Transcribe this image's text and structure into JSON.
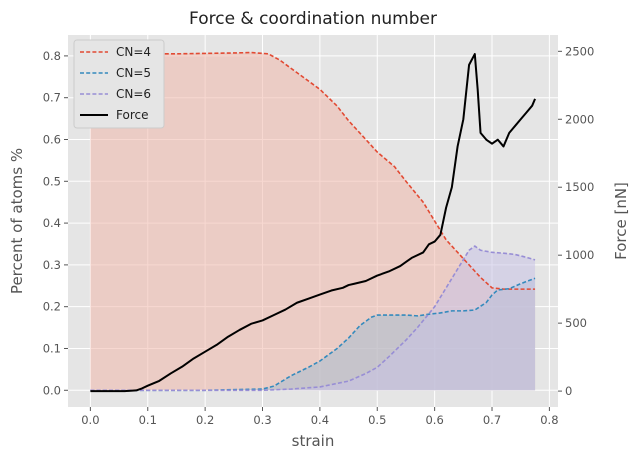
{
  "chart_data": {
    "type": "line",
    "title": "Force & coordination number",
    "xlabel": "strain",
    "ylabel": "Percent of atoms %",
    "y2label": "Force [nN]",
    "xlim": [
      -0.039,
      0.815
    ],
    "ylim": [
      -0.04,
      0.85
    ],
    "y2lim": [
      -117,
      2620
    ],
    "xticks": [
      "0.0",
      "0.1",
      "0.2",
      "0.3",
      "0.4",
      "0.5",
      "0.6",
      "0.7",
      "0.8"
    ],
    "yticks": [
      "0.0",
      "0.1",
      "0.2",
      "0.3",
      "0.4",
      "0.5",
      "0.6",
      "0.7",
      "0.8"
    ],
    "y2ticks": [
      "0",
      "500",
      "1000",
      "1500",
      "2000",
      "2500"
    ],
    "grid": true,
    "legend": "upper-left",
    "series": [
      {
        "name": "CN=4",
        "axis": "left",
        "style": "dashed",
        "fill": true,
        "color": "#E24A33",
        "fill_color": "#f0b8ac",
        "x": [
          0.0,
          0.05,
          0.1,
          0.15,
          0.2,
          0.25,
          0.28,
          0.31,
          0.33,
          0.36,
          0.4,
          0.43,
          0.45,
          0.48,
          0.5,
          0.53,
          0.55,
          0.58,
          0.6,
          0.62,
          0.64,
          0.66,
          0.68,
          0.7,
          0.72,
          0.74,
          0.76,
          0.775
        ],
        "y": [
          0.805,
          0.805,
          0.805,
          0.805,
          0.806,
          0.807,
          0.808,
          0.805,
          0.79,
          0.76,
          0.72,
          0.68,
          0.645,
          0.6,
          0.57,
          0.535,
          0.5,
          0.45,
          0.405,
          0.36,
          0.33,
          0.3,
          0.27,
          0.245,
          0.242,
          0.242,
          0.242,
          0.242
        ]
      },
      {
        "name": "CN=5",
        "axis": "left",
        "style": "dashed",
        "fill": true,
        "color": "#348ABD",
        "fill_color": "#a7bed0",
        "x": [
          0.0,
          0.1,
          0.2,
          0.3,
          0.32,
          0.35,
          0.38,
          0.4,
          0.43,
          0.45,
          0.47,
          0.49,
          0.5,
          0.52,
          0.55,
          0.57,
          0.59,
          0.61,
          0.63,
          0.65,
          0.67,
          0.69,
          0.7,
          0.71,
          0.73,
          0.75,
          0.775
        ],
        "y": [
          0.0,
          0.0,
          0.0,
          0.003,
          0.01,
          0.035,
          0.055,
          0.07,
          0.1,
          0.125,
          0.155,
          0.175,
          0.18,
          0.18,
          0.18,
          0.178,
          0.182,
          0.185,
          0.19,
          0.19,
          0.192,
          0.21,
          0.228,
          0.24,
          0.243,
          0.255,
          0.268
        ]
      },
      {
        "name": "CN=6",
        "axis": "left",
        "style": "dashed",
        "fill": true,
        "color": "#988ED5",
        "fill_color": "#c8c3e6",
        "x": [
          0.0,
          0.1,
          0.2,
          0.3,
          0.35,
          0.4,
          0.45,
          0.48,
          0.5,
          0.52,
          0.55,
          0.57,
          0.6,
          0.62,
          0.64,
          0.66,
          0.67,
          0.68,
          0.7,
          0.72,
          0.74,
          0.76,
          0.775
        ],
        "y": [
          0.0,
          0.0,
          0.0,
          0.0,
          0.003,
          0.008,
          0.022,
          0.04,
          0.055,
          0.08,
          0.12,
          0.15,
          0.2,
          0.245,
          0.29,
          0.335,
          0.345,
          0.335,
          0.33,
          0.328,
          0.325,
          0.318,
          0.312
        ]
      },
      {
        "name": "Force",
        "axis": "right",
        "style": "solid",
        "fill": false,
        "color": "#000000",
        "x": [
          0.0,
          0.02,
          0.04,
          0.06,
          0.08,
          0.09,
          0.1,
          0.12,
          0.14,
          0.16,
          0.18,
          0.2,
          0.22,
          0.24,
          0.26,
          0.28,
          0.3,
          0.32,
          0.34,
          0.36,
          0.38,
          0.4,
          0.42,
          0.44,
          0.45,
          0.46,
          0.48,
          0.5,
          0.52,
          0.54,
          0.55,
          0.56,
          0.58,
          0.59,
          0.6,
          0.61,
          0.62,
          0.63,
          0.64,
          0.65,
          0.66,
          0.67,
          0.675,
          0.68,
          0.69,
          0.7,
          0.71,
          0.72,
          0.73,
          0.74,
          0.75,
          0.76,
          0.77,
          0.775
        ],
        "y": [
          0,
          0,
          0,
          0,
          5,
          20,
          40,
          75,
          130,
          180,
          240,
          290,
          340,
          400,
          450,
          495,
          520,
          560,
          600,
          650,
          680,
          710,
          740,
          760,
          780,
          790,
          810,
          850,
          880,
          920,
          950,
          980,
          1020,
          1080,
          1100,
          1150,
          1350,
          1500,
          1800,
          2000,
          2400,
          2480,
          2220,
          1900,
          1850,
          1820,
          1850,
          1800,
          1900,
          1950,
          2000,
          2050,
          2100,
          2150
        ]
      }
    ]
  }
}
